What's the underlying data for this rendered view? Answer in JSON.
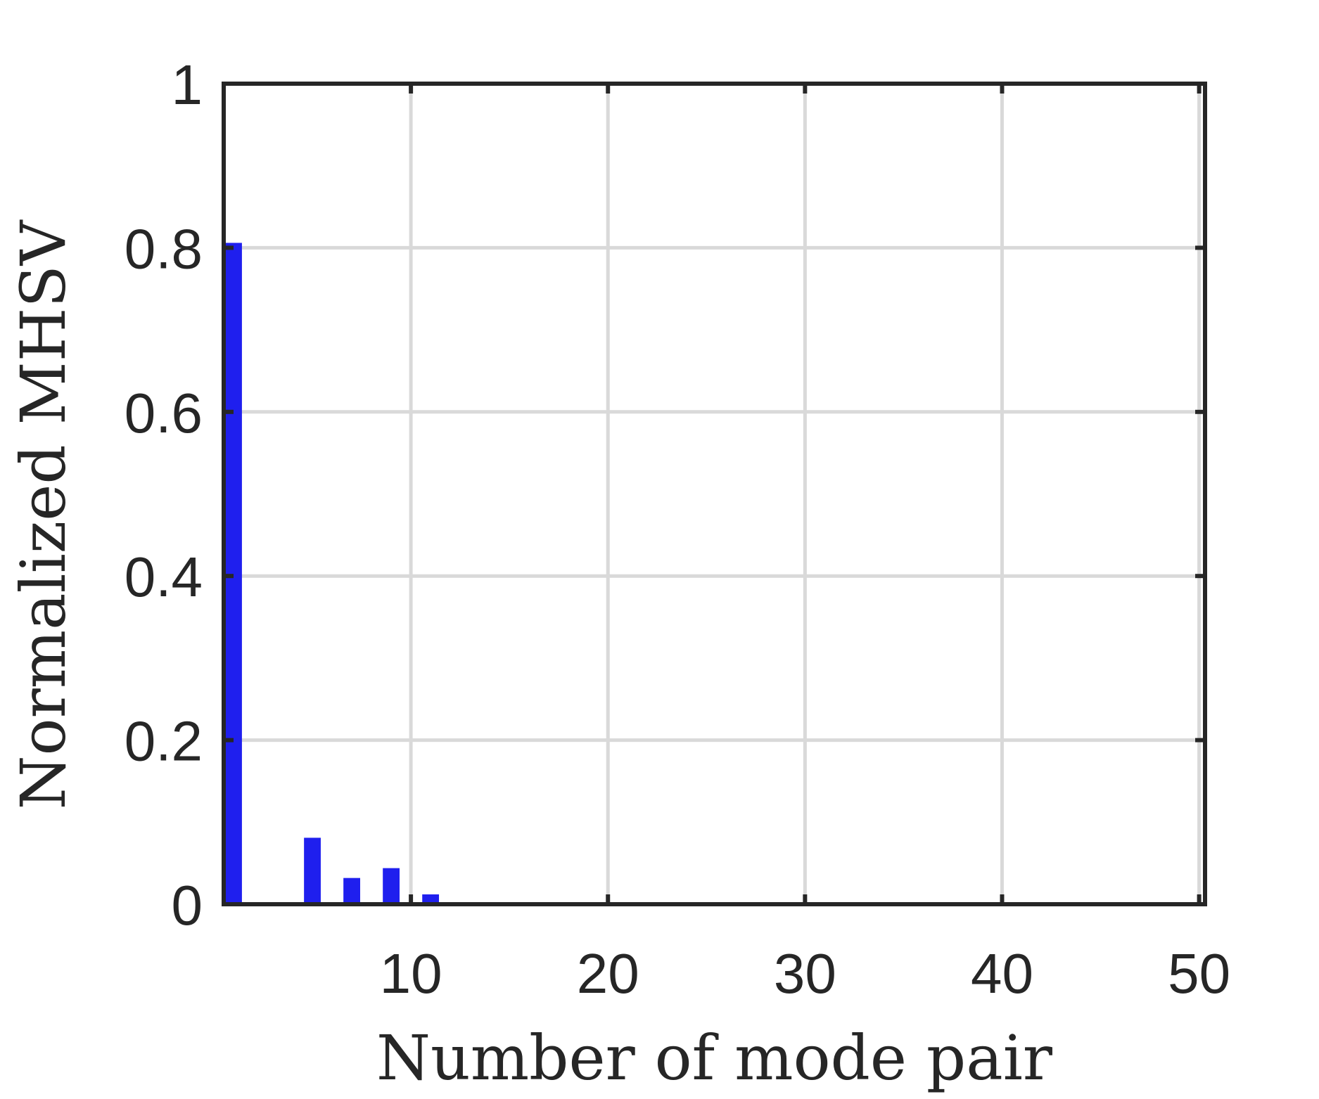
{
  "chart_data": {
    "type": "bar",
    "xlabel": "Number of mode pair",
    "ylabel": "Normalized MHSV",
    "xlim": [
      0.5,
      50.3
    ],
    "ylim": [
      0,
      1
    ],
    "x_ticks": [
      10,
      20,
      30,
      40,
      50
    ],
    "y_ticks": [
      0,
      0.2,
      0.4,
      0.6,
      0.8,
      1
    ],
    "y_tick_labels": [
      "0",
      "0.2",
      "0.4",
      "0.6",
      "0.8",
      "1"
    ],
    "grid": true,
    "bar_color": "#1f1fee",
    "x": [
      1,
      5,
      7,
      9,
      11,
      12,
      17,
      19,
      20,
      23,
      24,
      26
    ],
    "values": [
      0.806,
      0.081,
      0.032,
      0.044,
      0.012,
      0.002,
      0.001,
      0.001,
      0.001,
      0.001,
      0.001,
      0.001
    ]
  }
}
